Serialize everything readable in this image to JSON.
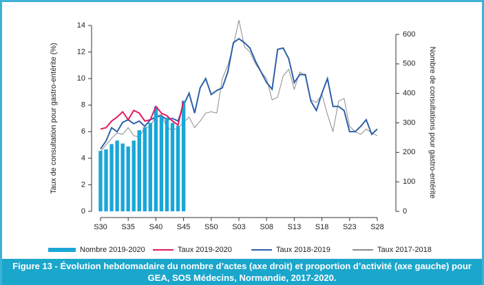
{
  "chart_data": {
    "type": "combo",
    "categories": [
      "S30",
      null,
      null,
      null,
      null,
      "S35",
      null,
      null,
      null,
      null,
      "S40",
      null,
      null,
      null,
      null,
      "S45",
      null,
      null,
      null,
      null,
      "S50",
      null,
      null,
      null,
      null,
      "S03",
      null,
      null,
      null,
      null,
      "S08",
      null,
      null,
      null,
      null,
      "S13",
      null,
      null,
      null,
      null,
      "S18",
      null,
      null,
      null,
      null,
      "S23",
      null,
      null,
      null,
      null,
      "S28"
    ],
    "ylabel": "Taux de consultation pour gastro-entérite (%)",
    "y2label": "Nombre de consultations pour gastro-entérite",
    "ylim": [
      0,
      14
    ],
    "yticks": [
      0,
      2,
      4,
      6,
      8,
      10,
      12,
      14
    ],
    "y2lim": [
      0,
      600
    ],
    "y2ticks": [
      0,
      100,
      200,
      300,
      400,
      500,
      600
    ],
    "series": [
      {
        "name": "Nombre 2019-2020",
        "type": "bar",
        "axis": "y2",
        "color": "#1aa7d8",
        "values": [
          205,
          210,
          228,
          240,
          230,
          220,
          240,
          275,
          285,
          300,
          355,
          320,
          318,
          300,
          290,
          375,
          null,
          null,
          null,
          null,
          null,
          null,
          null,
          null,
          null,
          null,
          null,
          null,
          null,
          null,
          null,
          null,
          null,
          null,
          null,
          null,
          null,
          null,
          null,
          null,
          null,
          null,
          null,
          null,
          null,
          null,
          null,
          null,
          null,
          null,
          null
        ]
      },
      {
        "name": "Taux 2019-2020",
        "type": "line",
        "color": "#e5195e",
        "values": [
          6.2,
          6.3,
          6.8,
          7.1,
          7.5,
          6.9,
          7.6,
          7.4,
          6.8,
          6.9,
          7.9,
          7.4,
          7.2,
          6.8,
          6.5,
          8.3,
          null,
          null,
          null,
          null,
          null,
          null,
          null,
          null,
          null,
          null,
          null,
          null,
          null,
          null,
          null,
          null,
          null,
          null,
          null,
          null,
          null,
          null,
          null,
          null,
          null,
          null,
          null,
          null,
          null,
          null,
          null,
          null,
          null,
          null,
          null
        ]
      },
      {
        "name": "Taux 2018-2019",
        "type": "line",
        "color": "#2b5fa8",
        "values": [
          4.7,
          5.3,
          6.3,
          6.0,
          6.7,
          6.9,
          6.6,
          6.8,
          6.4,
          6.9,
          7.1,
          7.2,
          6.9,
          7.0,
          6.8,
          8.0,
          8.9,
          7.4,
          9.3,
          10.0,
          8.8,
          9.1,
          9.3,
          10.5,
          12.7,
          13.0,
          12.7,
          12.3,
          11.3,
          10.5,
          9.7,
          9.2,
          12.2,
          12.3,
          11.5,
          9.7,
          10.3,
          10.3,
          8.3,
          7.6,
          8.9,
          10.0,
          7.9,
          7.9,
          7.6,
          6.0,
          6.0,
          6.4,
          6.9,
          5.8,
          6.2
        ]
      },
      {
        "name": "Taux 2017-2018",
        "type": "line",
        "color": "#8a8a8a",
        "values": [
          4.5,
          5.0,
          5.5,
          5.9,
          5.8,
          6.3,
          5.7,
          5.6,
          6.3,
          6.4,
          7.2,
          7.3,
          6.3,
          6.1,
          6.3,
          6.7,
          7.1,
          6.3,
          6.8,
          7.4,
          7.5,
          7.4,
          10.0,
          11.0,
          12.5,
          14.4,
          12.4,
          12.0,
          11.1,
          10.5,
          10.0,
          8.4,
          8.6,
          10.2,
          10.7,
          9.2,
          10.5,
          10.2,
          8.4,
          8.2,
          8.8,
          7.3,
          6.0,
          8.3,
          8.5,
          6.4,
          6.0,
          5.8,
          6.2,
          5.9,
          5.7
        ]
      }
    ],
    "caption": "Figure 13 - Évolution hebdomadaire du nombre d’actes (axe droit) et proportion d’activité (axe gauche) pour GEA, SOS Médecins, Normandie, 2017-2020."
  }
}
